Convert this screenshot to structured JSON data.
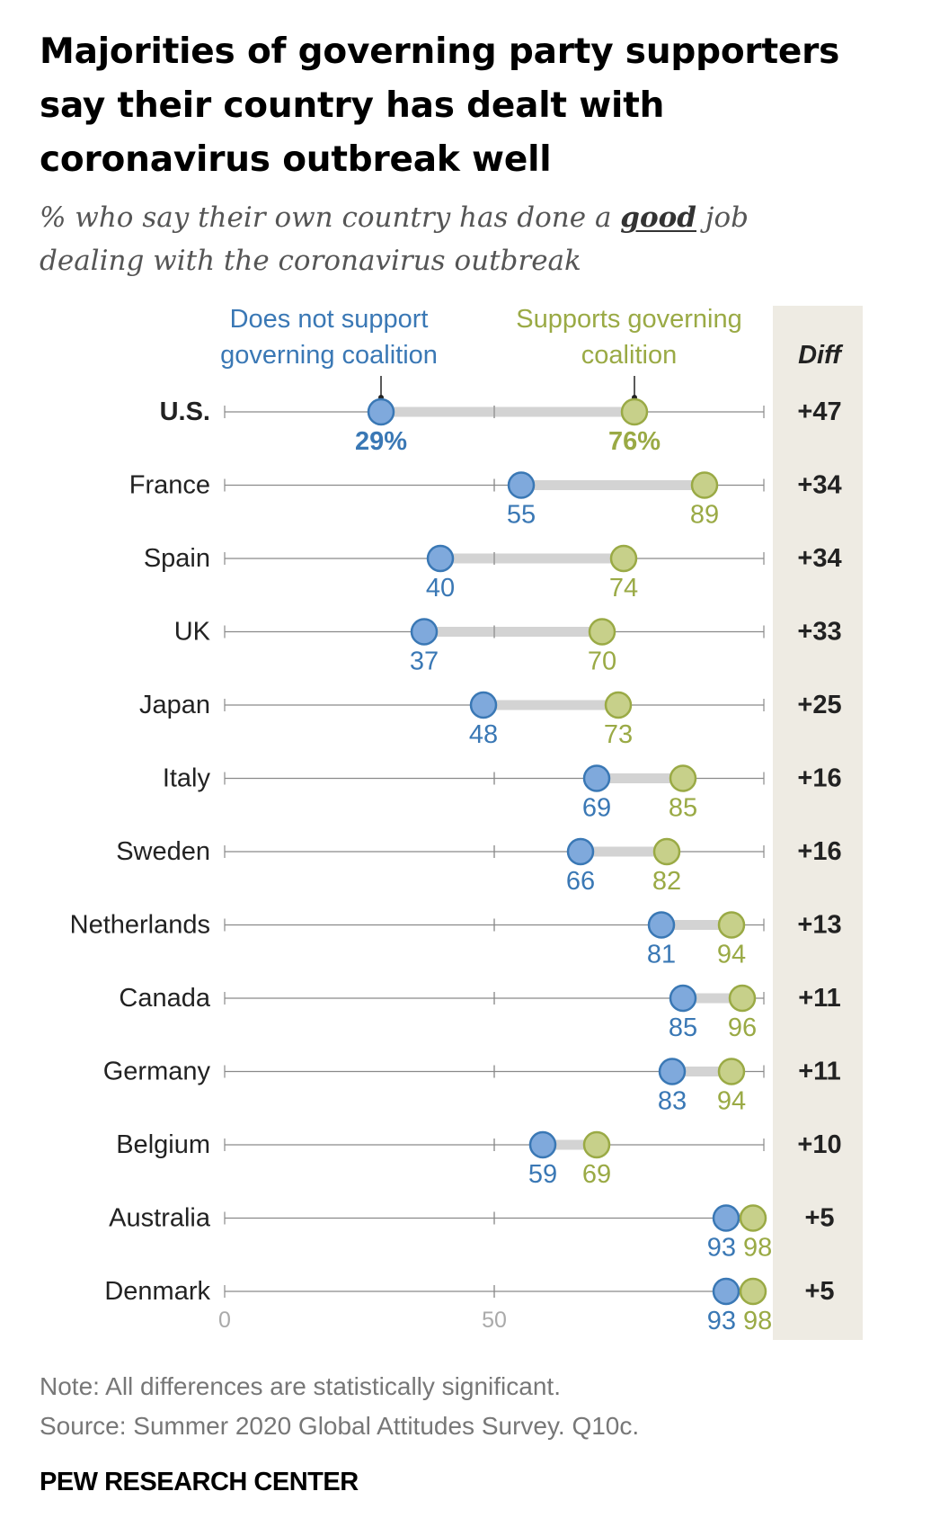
{
  "title": "Majorities of governing party supporters say their country has dealt with coronavirus outbreak well",
  "subtitle": {
    "before": "% who say their own country has done a ",
    "emph": "good",
    "after": " job dealing with the coronavirus outbreak"
  },
  "legend": {
    "blue_line1": "Does not support",
    "blue_line2": "governing coalition",
    "green_line1": "Supports governing",
    "green_line2": "coalition",
    "diff_header": "Diff"
  },
  "colors": {
    "blue": "#3a78b5",
    "blue_fill": "#7fa9dc",
    "green": "#9aaa45",
    "green_fill": "#c7d08a",
    "diff_bg": "#eeebe3"
  },
  "chart_data": {
    "type": "dot",
    "xlim": [
      0,
      100
    ],
    "x_ticks": [
      0,
      50
    ],
    "categories": [
      "U.S.",
      "France",
      "Spain",
      "UK",
      "Japan",
      "Italy",
      "Sweden",
      "Netherlands",
      "Canada",
      "Germany",
      "Belgium",
      "Australia",
      "Denmark"
    ],
    "series": [
      {
        "name": "Does not support governing coalition",
        "values": [
          29,
          55,
          40,
          37,
          48,
          69,
          66,
          81,
          85,
          83,
          59,
          93,
          93
        ]
      },
      {
        "name": "Supports governing coalition",
        "values": [
          76,
          89,
          74,
          70,
          73,
          85,
          82,
          94,
          96,
          94,
          69,
          98,
          98
        ]
      }
    ],
    "diff": [
      "+47",
      "+34",
      "+34",
      "+33",
      "+25",
      "+16",
      "+16",
      "+13",
      "+11",
      "+11",
      "+10",
      "+5",
      "+5"
    ]
  },
  "note": "Note: All differences are statistically significant.",
  "source": "Source: Summer 2020 Global Attitudes Survey. Q10c.",
  "brand": "PEW RESEARCH CENTER"
}
